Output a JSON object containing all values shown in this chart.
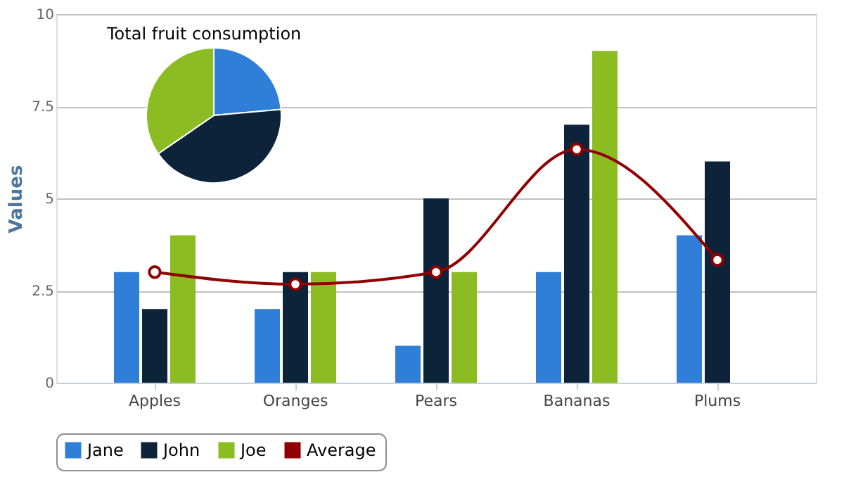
{
  "chart_data": [
    {
      "type": "bar",
      "categories": [
        "Apples",
        "Oranges",
        "Pears",
        "Bananas",
        "Plums"
      ],
      "ylabel": "Values",
      "ylim": [
        0,
        10
      ],
      "yticks": [
        0,
        2.5,
        5,
        7.5,
        10
      ],
      "grid": "y",
      "legend": "bottom",
      "series": [
        {
          "name": "Jane",
          "color": "#2f7ed8",
          "values": [
            3,
            2,
            1,
            3,
            4
          ]
        },
        {
          "name": "John",
          "color": "#0d233a",
          "values": [
            2,
            3,
            5,
            7,
            6
          ]
        },
        {
          "name": "Joe",
          "color": "#8bbc21",
          "values": [
            4,
            3,
            3,
            9,
            0
          ]
        },
        {
          "name": "Average",
          "type": "line",
          "color": "#910000",
          "marker": "circle",
          "values": [
            3,
            2.67,
            3,
            6.33,
            3.33
          ]
        }
      ]
    },
    {
      "type": "pie",
      "title": "Total fruit consumption",
      "categories": [
        null,
        null,
        null
      ],
      "values": [
        23.6,
        41.8,
        34.6
      ],
      "colors": [
        "#2f7ed8",
        "#0d233a",
        "#8bbc21"
      ]
    }
  ]
}
